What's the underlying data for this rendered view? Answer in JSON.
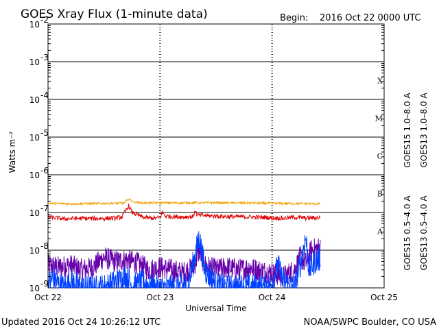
{
  "title": "GOES Xray Flux (1-minute data)",
  "begin_label": "Begin:",
  "begin_value": "2016 Oct 22 0000 UTC",
  "updated": "Updated 2016 Oct 24 10:26:12 UTC",
  "credit": "NOAA/SWPC Boulder, CO USA",
  "chart_data": {
    "type": "line",
    "title": "GOES Xray Flux (1-minute data)",
    "xlabel": "Universal Time",
    "ylabel": "Watts m⁻²",
    "y_scale": "log",
    "ylim": [
      1e-09,
      0.01
    ],
    "xlim_days": [
      0,
      3
    ],
    "x_tick_labels": [
      "Oct 22",
      "Oct 23",
      "Oct 24",
      "Oct 25"
    ],
    "y_tick_labels": [
      {
        "base": "10",
        "exp": "-2",
        "value": 0.01
      },
      {
        "base": "10",
        "exp": "-3",
        "value": 0.001
      },
      {
        "base": "10",
        "exp": "-4",
        "value": 0.0001
      },
      {
        "base": "10",
        "exp": "-5",
        "value": 1e-05
      },
      {
        "base": "10",
        "exp": "-6",
        "value": 1e-06
      },
      {
        "base": "10",
        "exp": "-7",
        "value": 1e-07
      },
      {
        "base": "10",
        "exp": "-8",
        "value": 1e-08
      },
      {
        "base": "10",
        "exp": "-9",
        "value": 1e-09
      }
    ],
    "flare_classes": [
      {
        "label": "X",
        "value": 0.0001
      },
      {
        "label": "M",
        "value": 1e-05
      },
      {
        "label": "C",
        "value": 1e-06
      },
      {
        "label": "B",
        "value": 1e-07
      },
      {
        "label": "A",
        "value": 1e-08
      }
    ],
    "grid": "horizontal lines at each decade from 1e-8 to 1e-3",
    "legend_placement": "right, vertical",
    "series": [
      {
        "name": "GOES15 1.0–8.0 A",
        "color": "#e00000",
        "points": [
          [
            0,
            7.5e-08
          ],
          [
            0.15,
            6.8e-08
          ],
          [
            0.3,
            7e-08
          ],
          [
            0.45,
            6.9e-08
          ],
          [
            0.6,
            7.1e-08
          ],
          [
            0.66,
            7.6e-08
          ],
          [
            0.7,
            1.2e-07
          ],
          [
            0.72,
            1.5e-07
          ],
          [
            0.75,
            1e-07
          ],
          [
            0.85,
            7.4e-08
          ],
          [
            0.95,
            7e-08
          ],
          [
            1.0,
            7.3e-08
          ],
          [
            1.02,
            1e-07
          ],
          [
            1.05,
            8e-08
          ],
          [
            1.2,
            7.6e-08
          ],
          [
            1.3,
            7.8e-08
          ],
          [
            1.31,
            1.2e-07
          ],
          [
            1.33,
            8.5e-08
          ],
          [
            1.5,
            8e-08
          ],
          [
            1.65,
            7.7e-08
          ],
          [
            1.8,
            7.6e-08
          ],
          [
            1.95,
            7.4e-08
          ],
          [
            2.0,
            7.2e-08
          ],
          [
            2.1,
            7e-08
          ],
          [
            2.2,
            7.5e-08
          ],
          [
            2.3,
            7.1e-08
          ],
          [
            2.43,
            7.3e-08
          ]
        ]
      },
      {
        "name": "GOES13 1.0–8.0 A",
        "color": "#f0a000",
        "points": [
          [
            0,
            1.75e-07
          ],
          [
            0.2,
            1.7e-07
          ],
          [
            0.4,
            1.72e-07
          ],
          [
            0.6,
            1.75e-07
          ],
          [
            0.68,
            1.8e-07
          ],
          [
            0.72,
            2.3e-07
          ],
          [
            0.76,
            1.9e-07
          ],
          [
            0.85,
            1.78e-07
          ],
          [
            1.0,
            1.8e-07
          ],
          [
            1.2,
            1.8e-07
          ],
          [
            1.4,
            1.82e-07
          ],
          [
            1.6,
            1.8e-07
          ],
          [
            1.8,
            1.78e-07
          ],
          [
            2.0,
            1.75e-07
          ],
          [
            2.2,
            1.72e-07
          ],
          [
            2.43,
            1.7e-07
          ]
        ]
      },
      {
        "name": "GOES15 0.5–4.0 A",
        "color": "#0040ff",
        "points": [
          [
            0,
            1.3e-09
          ],
          [
            0.05,
            1.8e-09
          ],
          [
            0.1,
            1.2e-09
          ],
          [
            0.15,
            1e-09
          ],
          [
            0.2,
            1.5e-09
          ],
          [
            0.3,
            1e-09
          ],
          [
            0.45,
            1e-09
          ],
          [
            0.55,
            1.2e-09
          ],
          [
            0.7,
            2e-09
          ],
          [
            0.75,
            1.1e-09
          ],
          [
            0.85,
            1.4e-09
          ],
          [
            0.95,
            1e-09
          ],
          [
            1.1,
            1e-09
          ],
          [
            1.25,
            1.2e-09
          ],
          [
            1.35,
            2.2e-08
          ],
          [
            1.4,
            3e-09
          ],
          [
            1.5,
            1.2e-09
          ],
          [
            1.6,
            1e-09
          ],
          [
            1.75,
            1.1e-09
          ],
          [
            1.9,
            1e-09
          ],
          [
            2.0,
            1.2e-09
          ],
          [
            2.05,
            4e-09
          ],
          [
            2.1,
            1.5e-09
          ],
          [
            2.2,
            1e-09
          ],
          [
            2.25,
            4e-09
          ],
          [
            2.3,
            2.2e-08
          ],
          [
            2.33,
            3e-09
          ],
          [
            2.38,
            5e-09
          ],
          [
            2.43,
            6e-09
          ]
        ]
      },
      {
        "name": "GOES13 0.5–4.0 A",
        "color": "#6600aa",
        "points": [
          [
            0,
            4e-09
          ],
          [
            0.1,
            3.5e-09
          ],
          [
            0.2,
            4e-09
          ],
          [
            0.3,
            3e-09
          ],
          [
            0.4,
            3.5e-09
          ],
          [
            0.5,
            6.5e-09
          ],
          [
            0.6,
            5e-09
          ],
          [
            0.7,
            5.5e-09
          ],
          [
            0.8,
            4.5e-09
          ],
          [
            0.9,
            3e-09
          ],
          [
            1.0,
            3.5e-09
          ],
          [
            1.1,
            3e-09
          ],
          [
            1.2,
            2.5e-09
          ],
          [
            1.3,
            3.5e-09
          ],
          [
            1.35,
            1e-08
          ],
          [
            1.4,
            4e-09
          ],
          [
            1.5,
            3e-09
          ],
          [
            1.6,
            3.5e-09
          ],
          [
            1.7,
            3e-09
          ],
          [
            1.8,
            3.5e-09
          ],
          [
            1.9,
            2.8e-09
          ],
          [
            2.0,
            2.5e-09
          ],
          [
            2.1,
            2e-09
          ],
          [
            2.2,
            3e-09
          ],
          [
            2.25,
            6.5e-09
          ],
          [
            2.3,
            4.5e-09
          ],
          [
            2.35,
            1e-08
          ],
          [
            2.4,
            1.1e-08
          ],
          [
            2.43,
            1.2e-08
          ]
        ]
      }
    ]
  }
}
